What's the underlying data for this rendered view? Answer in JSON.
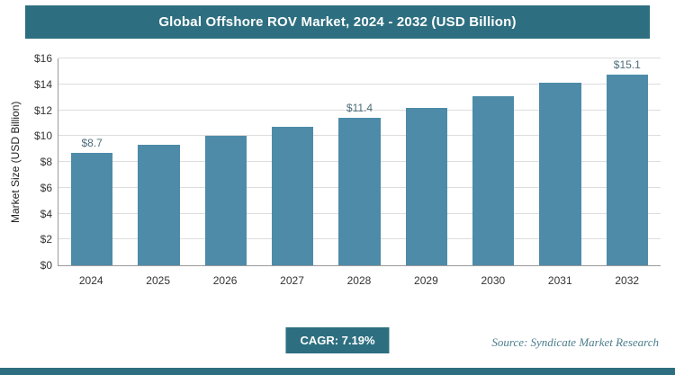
{
  "header": {
    "title": "Global Offshore ROV Market, 2024 - 2032 (USD Billion)"
  },
  "chart_data": {
    "type": "bar",
    "categories": [
      "2024",
      "2025",
      "2026",
      "2027",
      "2028",
      "2029",
      "2030",
      "2031",
      "2032"
    ],
    "values": [
      8.7,
      9.3,
      10.0,
      10.7,
      11.4,
      12.2,
      13.1,
      14.1,
      15.1
    ],
    "bar_labels": [
      "$8.7",
      "",
      "",
      "",
      "$11.4",
      "",
      "",
      "",
      "$15.1"
    ],
    "title": "Global Offshore ROV Market, 2024 - 2032 (USD Billion)",
    "xlabel": "",
    "ylabel": "Market Size (USD Billion)",
    "ylim": [
      0,
      16
    ],
    "ytick_step": 2,
    "ytick_prefix": "$",
    "grid": true,
    "legend": "none",
    "bar_color": "#4d8ba8"
  },
  "footer": {
    "cagr_label": "CAGR: 7.19%",
    "source": "Source: Syndicate Market Research"
  },
  "colors": {
    "accent": "#2d6f80",
    "bar": "#4d8ba8",
    "gridline": "#dddddd",
    "value_label": "#4d6d7a"
  }
}
